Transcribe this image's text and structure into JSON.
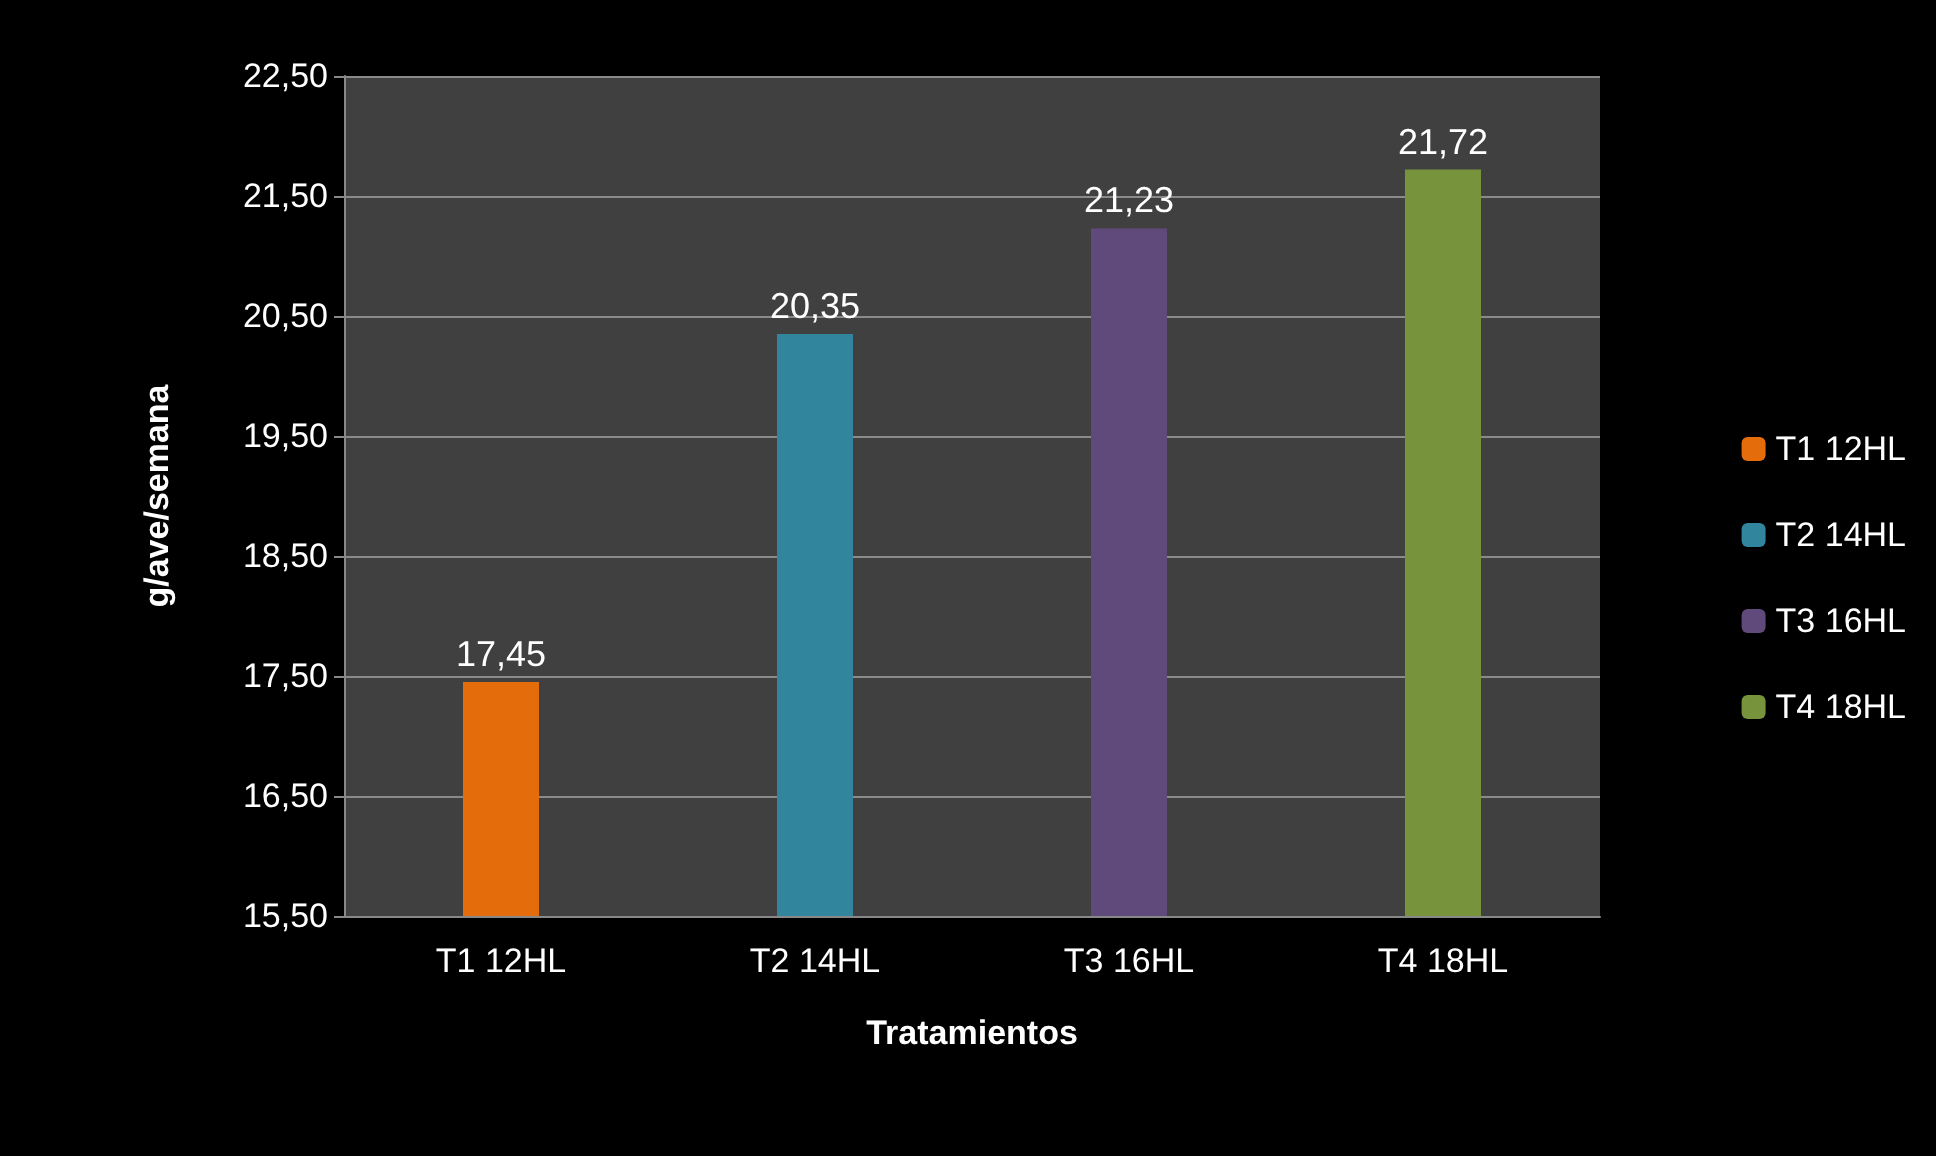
{
  "chart_data": {
    "type": "bar",
    "xlabel": "Tratamientos",
    "ylabel": "g/ave/semana",
    "categories": [
      "T1 12HL",
      "T2 14HL",
      "T3 16HL",
      "T4 18HL"
    ],
    "series": [
      {
        "name": "T1 12HL",
        "color": "#e46c0a",
        "values": [
          17.45,
          null,
          null,
          null
        ]
      },
      {
        "name": "T2 14HL",
        "color": "#31859c",
        "values": [
          null,
          20.35,
          null,
          null
        ]
      },
      {
        "name": "T3 16HL",
        "color": "#604a7b",
        "values": [
          null,
          null,
          21.23,
          null
        ]
      },
      {
        "name": "T4 18HL",
        "color": "#77933c",
        "values": [
          null,
          null,
          null,
          21.72
        ]
      }
    ],
    "ylim": [
      15.5,
      22.5
    ],
    "yticks": [
      {
        "value": 15.5,
        "label": "15,50"
      },
      {
        "value": 16.5,
        "label": "16,50"
      },
      {
        "value": 17.5,
        "label": "17,50"
      },
      {
        "value": 18.5,
        "label": "18,50"
      },
      {
        "value": 19.5,
        "label": "19,50"
      },
      {
        "value": 20.5,
        "label": "20,50"
      },
      {
        "value": 21.5,
        "label": "21,50"
      },
      {
        "value": 22.5,
        "label": "22,50"
      }
    ],
    "value_labels": [
      "17,45",
      "20,35",
      "21,23",
      "21,72"
    ],
    "grid": "y",
    "legend": "right"
  }
}
